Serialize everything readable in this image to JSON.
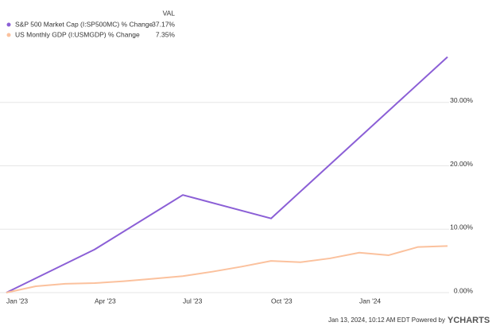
{
  "chart_data": {
    "type": "line",
    "legend_header": "VAL",
    "x": [
      0,
      1,
      2,
      3,
      4,
      5,
      6,
      7,
      8,
      9,
      10,
      11,
      12,
      13,
      14,
      15
    ],
    "xlim": [
      0,
      15
    ],
    "xticks": [
      {
        "value": 0,
        "label": "Jan '23"
      },
      {
        "value": 3,
        "label": "Apr '23"
      },
      {
        "value": 6,
        "label": "Jul '23"
      },
      {
        "value": 9,
        "label": "Oct '23"
      },
      {
        "value": 12,
        "label": "Jan '24"
      }
    ],
    "ylim": [
      0,
      38.5
    ],
    "yticks": [
      {
        "value": 0,
        "label": "0.00%"
      },
      {
        "value": 10,
        "label": "10.00%"
      },
      {
        "value": 20,
        "label": "20.00%"
      },
      {
        "value": 30,
        "label": "30.00%"
      }
    ],
    "grid": true,
    "series": [
      {
        "name": "S&P 500 Market Cap (I:SP500MC) % Change",
        "color": "#8b5fd6",
        "value_label": "37.17%",
        "values": [
          0,
          null,
          null,
          6.8,
          null,
          null,
          15.4,
          null,
          null,
          11.7,
          null,
          null,
          null,
          null,
          null,
          37.17
        ]
      },
      {
        "name": "US Monthly GDP (I:USMGDP) % Change",
        "color": "#fbc19d",
        "value_label": "7.35%",
        "values": [
          0,
          1.0,
          1.4,
          1.5,
          1.8,
          2.2,
          2.6,
          3.3,
          4.1,
          5.0,
          4.8,
          5.4,
          6.3,
          5.9,
          7.2,
          7.35
        ]
      }
    ],
    "footer": "Jan 13, 2024, 10:12 AM EDT Powered by",
    "brand": "YCHARTS"
  }
}
